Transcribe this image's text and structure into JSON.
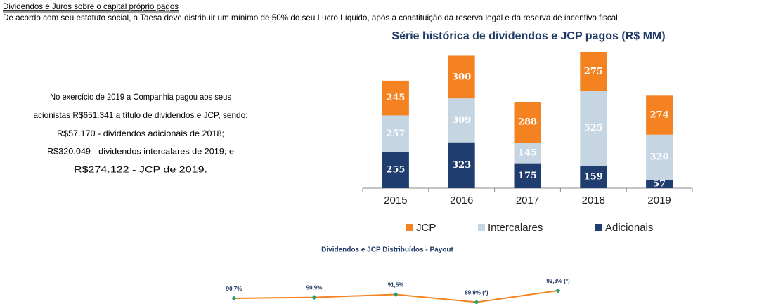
{
  "header": {
    "title": "Dividendos e Juros sobre o capital próprio pagos",
    "text": "De acordo com seu estatuto social, a Taesa deve distribuir um mínimo de 50% do seu Lucro Líquido, após a constituição da reserva legal e da reserva de incentivo fiscal."
  },
  "left_text": {
    "lines": [
      "No exercício de 2019 a Companhia pagou aos seus",
      "acionistas R$651.341 a título de dividendos e JCP, sendo:",
      "R$57.170 - dividendos adicionais de 2018;",
      "R$320.049 - dividendos intercalares de 2019; e",
      "R$274.122 - JCP de 2019."
    ]
  },
  "chart_data": [
    {
      "type": "stacked_bar",
      "title": "Série histórica de dividendos e JCP pagos (R$ MM)",
      "categories": [
        "2015",
        "2016",
        "2017",
        "2018",
        "2019"
      ],
      "series": [
        {
          "name": "JCP",
          "color": "#f58220",
          "values": [
            245,
            300,
            288,
            275,
            274
          ]
        },
        {
          "name": "Intercalares",
          "color": "#c5d5e2",
          "values": [
            257,
            309,
            145,
            525,
            320
          ]
        },
        {
          "name": "Adicionais",
          "color": "#1f3d6e",
          "values": [
            255,
            323,
            175,
            159,
            57
          ]
        }
      ],
      "legend": "bottom"
    },
    {
      "type": "line",
      "title": "Dividendos e JCP Distribuídos - Payout",
      "values": [
        90.7,
        90.9,
        91.5,
        89.9,
        92.3
      ],
      "value_labels": [
        "90,7%",
        "90,9%",
        "91,5%",
        "89,9% (*)",
        "92,3% (*)"
      ],
      "color": "#f58220",
      "marker_color": "#2e9e6e"
    }
  ]
}
